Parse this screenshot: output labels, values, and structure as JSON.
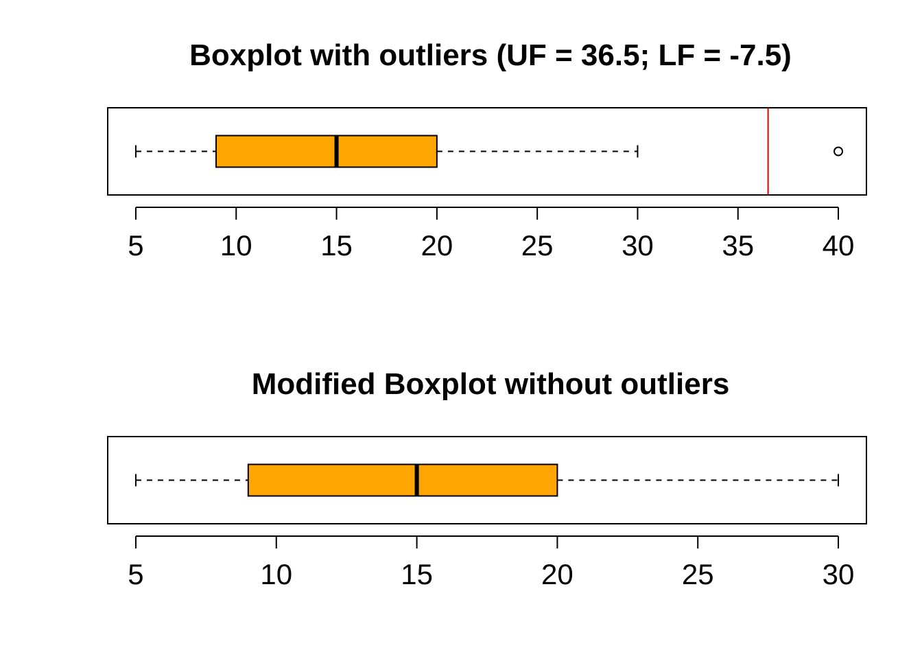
{
  "chart_data": [
    {
      "type": "boxplot",
      "title": "Boxplot with outliers (UF = 36.5; LF = -7.5)",
      "orientation": "horizontal",
      "xlim": [
        3.6,
        41.4
      ],
      "ticks": [
        5,
        10,
        15,
        20,
        25,
        30,
        35,
        40
      ],
      "tick_labels": [
        "5",
        "10",
        "15",
        "20",
        "25",
        "30",
        "35",
        "40"
      ],
      "box": {
        "whisker_low": 5,
        "q1": 9,
        "median": 15,
        "q3": 20,
        "whisker_high": 30
      },
      "outliers": [
        40
      ],
      "reference_lines": [
        {
          "value": 36.5,
          "color": "#dd0000"
        }
      ],
      "box_color": "#ffa500"
    },
    {
      "type": "boxplot",
      "title": "Modified Boxplot without outliers",
      "orientation": "horizontal",
      "xlim": [
        4.0,
        31.0
      ],
      "ticks": [
        5,
        10,
        15,
        20,
        25,
        30
      ],
      "tick_labels": [
        "5",
        "10",
        "15",
        "20",
        "25",
        "30"
      ],
      "box": {
        "whisker_low": 5,
        "q1": 9,
        "median": 15,
        "q3": 20,
        "whisker_high": 30
      },
      "outliers": [],
      "reference_lines": [],
      "box_color": "#ffa500"
    }
  ]
}
